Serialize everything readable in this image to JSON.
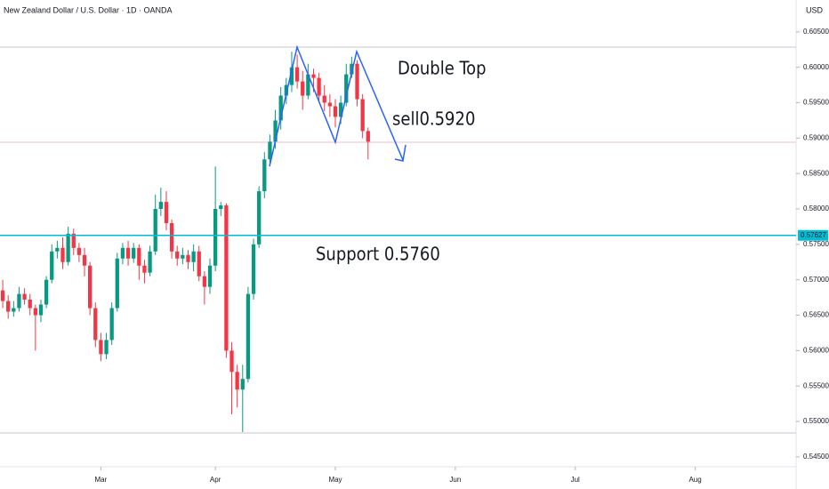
{
  "chart_data": {
    "type": "candlestick",
    "title": "New Zealand Dollar / U.S. Dollar · 1D · OANDA",
    "currency": "USD",
    "up_color": "#089981",
    "down_color": "#f23645",
    "open": [
      0.5685,
      0.567,
      0.5655,
      0.566,
      0.568,
      0.5672,
      0.566,
      0.565,
      0.5665,
      0.57,
      0.574,
      0.5745,
      0.5725,
      0.5765,
      0.5745,
      0.5735,
      0.572,
      0.566,
      0.5615,
      0.5595,
      0.5615,
      0.566,
      0.573,
      0.5745,
      0.573,
      0.5745,
      0.572,
      0.571,
      0.574,
      0.58,
      0.581,
      0.578,
      0.574,
      0.573,
      0.5735,
      0.5725,
      0.574,
      0.5705,
      0.569,
      0.572,
      0.58,
      0.5805,
      0.56,
      0.557,
      0.5545,
      0.556,
      0.568,
      0.575,
      0.5825,
      0.587,
      0.5895,
      0.5925,
      0.596,
      0.5975,
      0.6,
      0.598,
      0.596,
      0.599,
      0.5985,
      0.596,
      0.595,
      0.5945,
      0.593,
      0.595,
      0.599,
      0.6005,
      0.5955,
      0.591
    ],
    "high": [
      0.57,
      0.5678,
      0.567,
      0.569,
      0.5688,
      0.568,
      0.5665,
      0.5672,
      0.5705,
      0.575,
      0.5755,
      0.576,
      0.5775,
      0.5772,
      0.5752,
      0.5745,
      0.5725,
      0.5668,
      0.5625,
      0.5625,
      0.5668,
      0.5738,
      0.5752,
      0.5755,
      0.5752,
      0.575,
      0.5728,
      0.5748,
      0.582,
      0.583,
      0.5825,
      0.5785,
      0.5748,
      0.5745,
      0.5742,
      0.575,
      0.5748,
      0.5712,
      0.573,
      0.586,
      0.581,
      0.5808,
      0.5612,
      0.558,
      0.558,
      0.569,
      0.5758,
      0.5832,
      0.588,
      0.5905,
      0.594,
      0.5972,
      0.5985,
      0.6022,
      0.6018,
      0.5995,
      0.6005,
      0.5998,
      0.5992,
      0.5975,
      0.5962,
      0.5955,
      0.596,
      0.6005,
      0.6015,
      0.601,
      0.5962,
      0.5915
    ],
    "low": [
      0.566,
      0.5645,
      0.5648,
      0.5655,
      0.5665,
      0.565,
      0.56,
      0.564,
      0.566,
      0.5695,
      0.573,
      0.5715,
      0.572,
      0.5735,
      0.5725,
      0.5705,
      0.565,
      0.5605,
      0.5585,
      0.5588,
      0.5608,
      0.5655,
      0.5722,
      0.572,
      0.5724,
      0.57,
      0.5695,
      0.5705,
      0.5735,
      0.579,
      0.577,
      0.573,
      0.572,
      0.5722,
      0.5715,
      0.5712,
      0.5698,
      0.5665,
      0.568,
      0.5712,
      0.579,
      0.559,
      0.551,
      0.552,
      0.5485,
      0.5555,
      0.5672,
      0.5745,
      0.5815,
      0.586,
      0.5885,
      0.5912,
      0.5948,
      0.5965,
      0.597,
      0.594,
      0.5955,
      0.5965,
      0.595,
      0.5938,
      0.593,
      0.5915,
      0.592,
      0.5945,
      0.5985,
      0.5945,
      0.59,
      0.587
    ],
    "close": [
      0.567,
      0.5655,
      0.566,
      0.568,
      0.5672,
      0.566,
      0.565,
      0.5665,
      0.57,
      0.574,
      0.5745,
      0.5725,
      0.5765,
      0.5745,
      0.5735,
      0.572,
      0.566,
      0.5615,
      0.5595,
      0.5615,
      0.566,
      0.573,
      0.5745,
      0.573,
      0.5745,
      0.572,
      0.571,
      0.574,
      0.58,
      0.581,
      0.578,
      0.574,
      0.573,
      0.5735,
      0.5725,
      0.574,
      0.5705,
      0.569,
      0.572,
      0.58,
      0.5805,
      0.56,
      0.557,
      0.5545,
      0.556,
      0.568,
      0.575,
      0.5825,
      0.587,
      0.5895,
      0.5925,
      0.596,
      0.5975,
      0.6,
      0.598,
      0.596,
      0.599,
      0.5985,
      0.596,
      0.595,
      0.5945,
      0.593,
      0.595,
      0.599,
      0.6005,
      0.5955,
      0.591,
      0.5895
    ],
    "xlim": [
      -0.5,
      145.5
    ],
    "xticks": [
      {
        "value": 18,
        "label": "Mar"
      },
      {
        "value": 39,
        "label": "Apr"
      },
      {
        "value": 61,
        "label": "May"
      },
      {
        "value": 83,
        "label": "Jun"
      },
      {
        "value": 105,
        "label": "Jul"
      },
      {
        "value": 127,
        "label": "Aug"
      }
    ],
    "ylim": [
      0.5436,
      0.6095
    ],
    "yticks": [
      {
        "value": 0.545,
        "label": "0.54500"
      },
      {
        "value": 0.55,
        "label": "0.55000"
      },
      {
        "value": 0.555,
        "label": "0.55500"
      },
      {
        "value": 0.56,
        "label": "0.56000"
      },
      {
        "value": 0.565,
        "label": "0.56500"
      },
      {
        "value": 0.57,
        "label": "0.57000"
      },
      {
        "value": 0.575,
        "label": "0.57500"
      },
      {
        "value": 0.58,
        "label": "0.58000"
      },
      {
        "value": 0.585,
        "label": "0.58500"
      },
      {
        "value": 0.59,
        "label": "0.59000"
      },
      {
        "value": 0.595,
        "label": "0.59500"
      },
      {
        "value": 0.6,
        "label": "0.60000"
      },
      {
        "value": 0.605,
        "label": "0.60500"
      }
    ],
    "price_line": 0.57627,
    "price_line_color": "#00bcd4",
    "annotations": [
      {
        "text": "Double Top",
        "color": "#9c27b0"
      },
      {
        "text": "sell0.5920",
        "color": "#9c27b0"
      },
      {
        "text": "Support 0.5760",
        "color": "#4caf50"
      }
    ]
  }
}
